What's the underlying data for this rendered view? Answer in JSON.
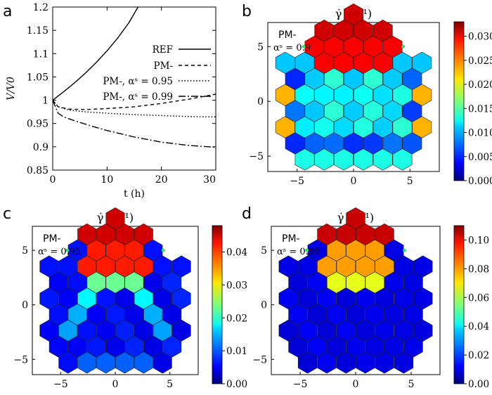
{
  "chart_data": [
    {
      "panel": "a",
      "type": "line",
      "xlabel": "t (h)",
      "ylabel": "V/V0",
      "xlim": [
        0,
        30
      ],
      "ylim": [
        0.85,
        1.2
      ],
      "xticks": [
        "0",
        "10",
        "20",
        "30"
      ],
      "yticks": [
        "0.85",
        "0.9",
        "0.95",
        "1",
        "1.05",
        "1.1",
        "1.15",
        "1.2"
      ],
      "legend_position": "center-right",
      "series": [
        {
          "name": "REF",
          "style": "solid",
          "x": [
            0,
            2,
            4,
            6,
            8,
            10,
            12,
            14,
            15.7
          ],
          "y": [
            1.0,
            1.018,
            1.037,
            1.058,
            1.081,
            1.106,
            1.134,
            1.166,
            1.2
          ]
        },
        {
          "name": "PM-",
          "style": "dashed",
          "x": [
            0,
            1,
            3,
            6,
            10,
            15,
            20,
            25,
            30
          ],
          "y": [
            1.0,
            0.986,
            0.981,
            0.98,
            0.982,
            0.986,
            0.993,
            1.002,
            1.013
          ]
        },
        {
          "name": "PM-, αˢ = 0.95",
          "style": "dotted",
          "x": [
            0,
            1,
            3,
            6,
            10,
            15,
            20,
            25,
            30
          ],
          "y": [
            1.0,
            0.986,
            0.979,
            0.975,
            0.972,
            0.969,
            0.967,
            0.965,
            0.964
          ]
        },
        {
          "name": "PM-, αˢ = 0.99",
          "style": "dashdot",
          "x": [
            0,
            1,
            2,
            4,
            7,
            10,
            15,
            20,
            25,
            30
          ],
          "y": [
            1.0,
            0.972,
            0.964,
            0.956,
            0.945,
            0.935,
            0.921,
            0.91,
            0.903,
            0.899
          ]
        }
      ]
    },
    {
      "panel": "b",
      "type": "heatmap",
      "title": "γ̇ (h⁻¹)",
      "annotation_model": "PM-",
      "annotation_alpha": "αˢ = 0.9",
      "xticks": [
        "−5",
        "0",
        "5"
      ],
      "yticks": [
        "−5",
        "0",
        "5"
      ],
      "colorbar_ticks": [
        "0.000",
        "0.005",
        "0.010",
        "0.015",
        "0.020",
        "0.025",
        "0.030"
      ],
      "colorbar_range": [
        0,
        0.033
      ]
    },
    {
      "panel": "c",
      "type": "heatmap",
      "title": "γ̇ (h⁻¹)",
      "annotation_model": "PM-",
      "annotation_alpha": "αˢ = 0.95",
      "xticks": [
        "−5",
        "0",
        "5"
      ],
      "yticks": [
        "−5",
        "0",
        "5"
      ],
      "colorbar_ticks": [
        "0.00",
        "0.01",
        "0.02",
        "0.03",
        "0.04"
      ],
      "colorbar_range": [
        0,
        0.048
      ]
    },
    {
      "panel": "d",
      "type": "heatmap",
      "title": "γ̇ (h⁻¹)",
      "annotation_model": "PM-",
      "annotation_alpha": "αˢ = 0.99",
      "xticks": [
        "−5",
        "0",
        "5"
      ],
      "yticks": [
        "−5",
        "0",
        "5"
      ],
      "colorbar_ticks": [
        "0.00",
        "0.02",
        "0.04",
        "0.06",
        "0.08",
        "0.10"
      ],
      "colorbar_range": [
        0,
        0.11
      ]
    }
  ],
  "panel_labels": [
    "a",
    "b",
    "c",
    "d"
  ]
}
